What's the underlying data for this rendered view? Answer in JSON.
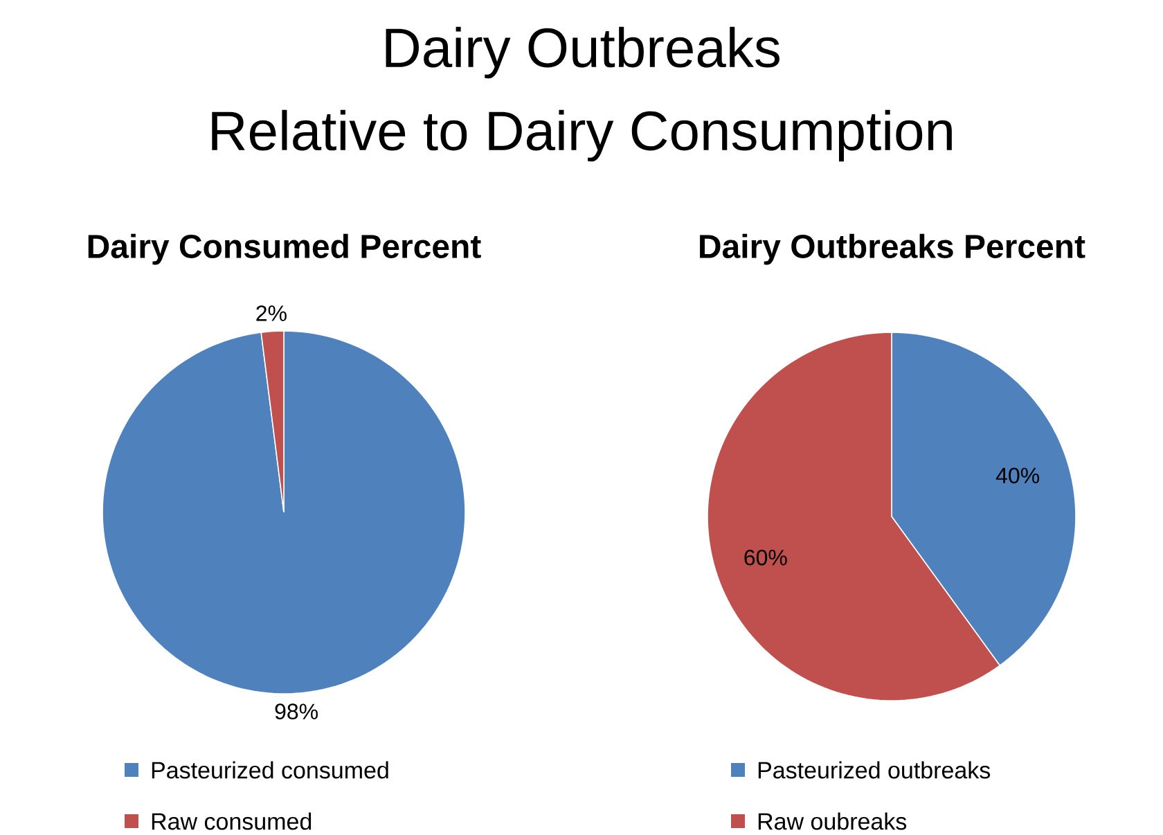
{
  "chart_data": [
    {
      "type": "other",
      "title": "Dairy Outbreaks",
      "subtitle": "Relative to Dairy Consumption"
    },
    {
      "type": "pie",
      "title": "Dairy Consumed Percent",
      "categories": [
        "Pasteurized consumed",
        "Raw consumed"
      ],
      "values": [
        98,
        2
      ],
      "colors": [
        "#4f81bd",
        "#c0504d"
      ],
      "value_labels": [
        "98%",
        "2%"
      ],
      "legend": "bottom"
    },
    {
      "type": "pie",
      "title": "Dairy Outbreaks Percent",
      "categories": [
        "Pasteurized outbreaks",
        "Raw oubreaks"
      ],
      "values": [
        40,
        60
      ],
      "colors": [
        "#4f81bd",
        "#c0504d"
      ],
      "value_labels": [
        "40%",
        "60%"
      ],
      "legend": "bottom"
    }
  ]
}
